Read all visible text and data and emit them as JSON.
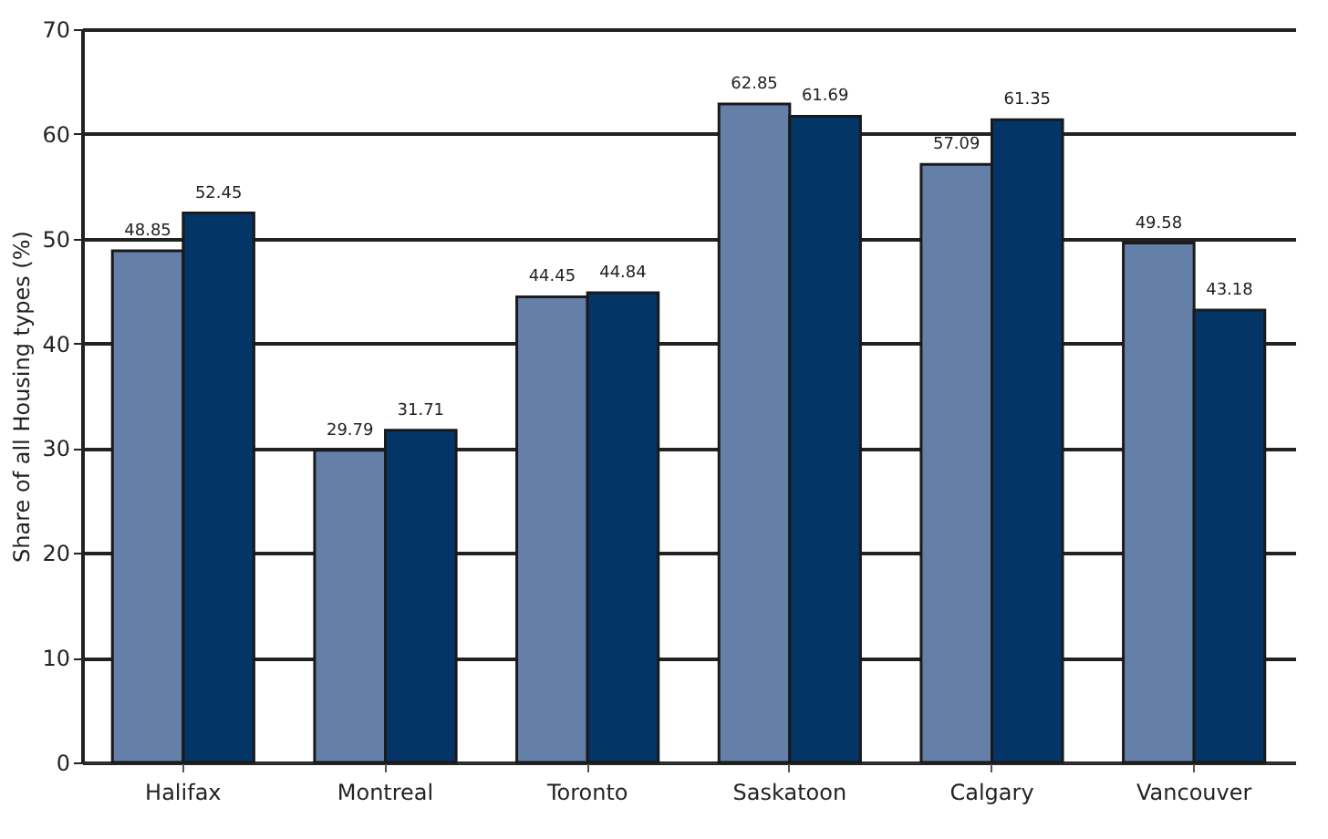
{
  "chart_data": {
    "type": "bar",
    "ylabel": "Share of all Housing types (%)",
    "categories": [
      "Halifax",
      "Montreal",
      "Toronto",
      "Saskatoon",
      "Calgary",
      "Vancouver"
    ],
    "series": [
      {
        "color": "#6580a8",
        "values": [
          48.85,
          29.79,
          44.45,
          62.85,
          57.09,
          49.58
        ]
      },
      {
        "color": "#033566",
        "values": [
          52.45,
          31.71,
          44.84,
          61.69,
          61.35,
          43.18
        ]
      }
    ],
    "ylim": [
      0,
      70
    ],
    "yticks": [
      0,
      10,
      20,
      30,
      40,
      50,
      60,
      70
    ],
    "grid": "y",
    "data_labels": true,
    "legend": false
  }
}
